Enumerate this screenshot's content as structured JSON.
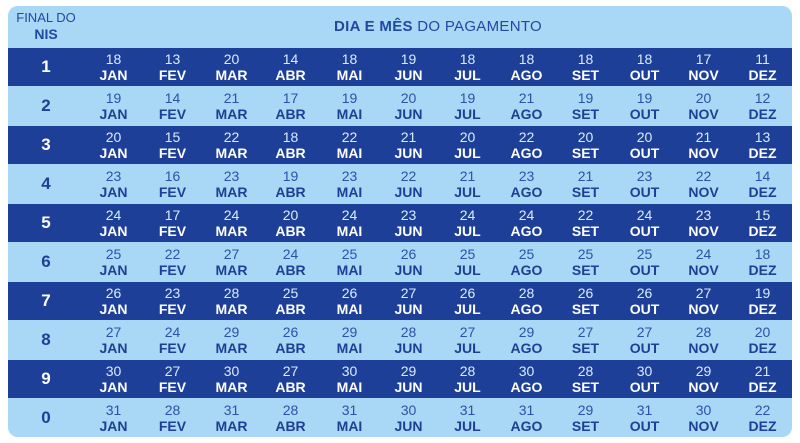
{
  "header": {
    "nis_label_top": "FINAL DO",
    "nis_label_bottom": "NIS",
    "title_bold": "DIA E MÊS",
    "title_rest": " DO PAGAMENTO"
  },
  "months": [
    "JAN",
    "FEV",
    "MAR",
    "ABR",
    "MAI",
    "JUN",
    "JUL",
    "AGO",
    "SET",
    "OUT",
    "NOV",
    "DEZ"
  ],
  "rows": [
    {
      "nis": "1",
      "days": [
        "18",
        "13",
        "20",
        "14",
        "18",
        "19",
        "18",
        "18",
        "18",
        "18",
        "17",
        "11"
      ]
    },
    {
      "nis": "2",
      "days": [
        "19",
        "14",
        "21",
        "17",
        "19",
        "20",
        "19",
        "21",
        "19",
        "19",
        "20",
        "12"
      ]
    },
    {
      "nis": "3",
      "days": [
        "20",
        "15",
        "22",
        "18",
        "22",
        "21",
        "20",
        "22",
        "20",
        "20",
        "21",
        "13"
      ]
    },
    {
      "nis": "4",
      "days": [
        "23",
        "16",
        "23",
        "19",
        "23",
        "22",
        "21",
        "23",
        "21",
        "23",
        "22",
        "14"
      ]
    },
    {
      "nis": "5",
      "days": [
        "24",
        "17",
        "24",
        "20",
        "24",
        "23",
        "24",
        "24",
        "22",
        "24",
        "23",
        "15"
      ]
    },
    {
      "nis": "6",
      "days": [
        "25",
        "22",
        "27",
        "24",
        "25",
        "26",
        "25",
        "25",
        "25",
        "25",
        "24",
        "18"
      ]
    },
    {
      "nis": "7",
      "days": [
        "26",
        "23",
        "28",
        "25",
        "26",
        "27",
        "26",
        "28",
        "26",
        "26",
        "27",
        "19"
      ]
    },
    {
      "nis": "8",
      "days": [
        "27",
        "24",
        "29",
        "26",
        "29",
        "28",
        "27",
        "29",
        "27",
        "27",
        "28",
        "20"
      ]
    },
    {
      "nis": "9",
      "days": [
        "30",
        "27",
        "30",
        "27",
        "30",
        "29",
        "28",
        "30",
        "28",
        "30",
        "29",
        "21"
      ]
    },
    {
      "nis": "0",
      "days": [
        "31",
        "28",
        "31",
        "28",
        "31",
        "30",
        "31",
        "31",
        "29",
        "31",
        "30",
        "22"
      ]
    }
  ],
  "colors": {
    "dark_row": "#1d3f98",
    "light_row": "#a9d8f7"
  }
}
